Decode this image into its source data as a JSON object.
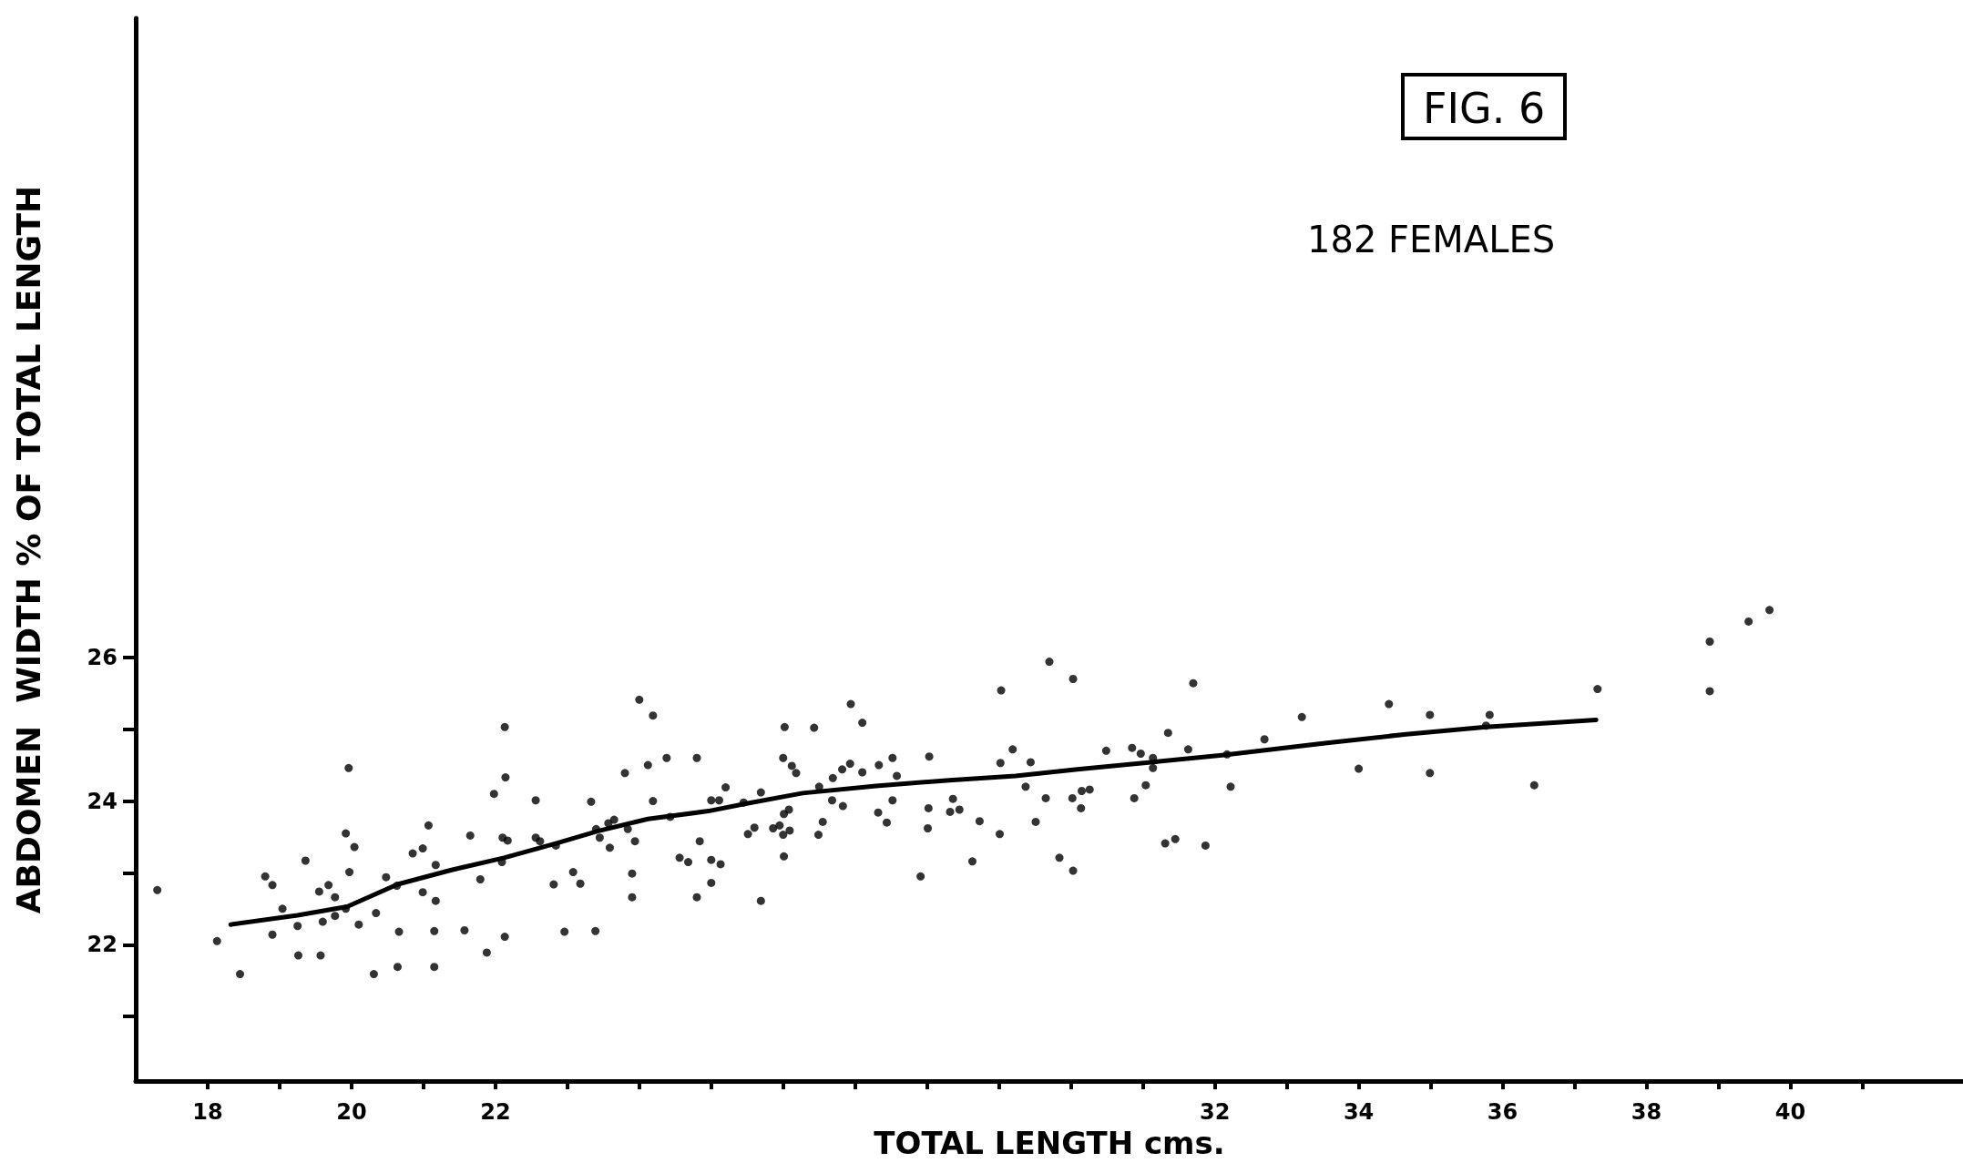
{
  "chart_data": {
    "type": "scatter",
    "title": "FIG. 6",
    "subtitle": "182 FEMALES",
    "xlabel": "TOTAL LENGTH cms.",
    "ylabel": "ABDOMEN  WIDTH % OF TOTAL LENGTH",
    "xlim": [
      17,
      42.4
    ],
    "ylim": [
      20.1,
      34.9
    ],
    "xticks": [
      18,
      {
        "value": 19,
        "label": null
      },
      20,
      {
        "value": 21,
        "label": null
      },
      22,
      {
        "value": 23,
        "label": null
      },
      {
        "value": 24,
        "label": null
      },
      {
        "value": 25,
        "label": null
      },
      {
        "value": 26,
        "label": null
      },
      {
        "value": 27,
        "label": null
      },
      {
        "value": 28,
        "label": null
      },
      {
        "value": 29,
        "label": null
      },
      {
        "value": 30,
        "label": null
      },
      {
        "value": 31,
        "label": null
      },
      32,
      {
        "value": 33,
        "label": null
      },
      34,
      {
        "value": 35,
        "label": null
      },
      36,
      {
        "value": 37,
        "label": null
      },
      38,
      {
        "value": 39,
        "label": null
      },
      40,
      {
        "value": 41,
        "label": null
      }
    ],
    "yticks": [
      {
        "value": 21,
        "label": null
      },
      22,
      {
        "value": 23,
        "label": null
      },
      24,
      {
        "value": 25,
        "label": null
      },
      26
    ],
    "marker": "circle",
    "series": [
      {
        "type": "scatter",
        "color": "#000000",
        "x": [
          17.3,
          18.13,
          18.45,
          18.8,
          18.9,
          18.9,
          19.04,
          19.25,
          19.26,
          19.36,
          19.55,
          19.68,
          19.57,
          19.6,
          19.77,
          19.77,
          19.92,
          19.96,
          19.97,
          20.04,
          19.92,
          20.1,
          20.31,
          20.34,
          20.48,
          20.63,
          20.66,
          20.64,
          20.85,
          20.99,
          20.99,
          21.07,
          21.17,
          21.17,
          21.15,
          21.15,
          21.57,
          21.65,
          21.79,
          21.88,
          21.98,
          22.09,
          22.13,
          22.14,
          22.1,
          22.17,
          22.13,
          22.56,
          22.56,
          22.62,
          22.81,
          22.84,
          22.96,
          23.08,
          23.18,
          23.33,
          23.39,
          23.4,
          23.45,
          23.57,
          23.59,
          23.65,
          23.8,
          23.84,
          23.9,
          23.9,
          23.94,
          24.0,
          24.12,
          24.19,
          24.19,
          24.38,
          24.43,
          24.56,
          24.68,
          24.8,
          24.8,
          24.84,
          25.0,
          25.13,
          25.0,
          25.0,
          25.11,
          25.2,
          25.45,
          25.51,
          25.6,
          25.69,
          25.69,
          25.86,
          25.95,
          26.0,
          26.01,
          26.01,
          26.02,
          26.0,
          26.09,
          26.08,
          26.12,
          26.18,
          26.43,
          26.49,
          26.5,
          26.55,
          26.68,
          26.69,
          26.83,
          26.82,
          26.93,
          26.94,
          27.1,
          27.1,
          27.32,
          27.33,
          27.44,
          27.52,
          27.52,
          27.58,
          27.91,
          28.01,
          28.03,
          28.02,
          28.32,
          28.36,
          28.45,
          28.63,
          28.73,
          29.01,
          29.02,
          29.03,
          29.19,
          29.37,
          29.44,
          29.51,
          29.65,
          29.7,
          29.84,
          30.02,
          30.03,
          30.03,
          30.14,
          30.15,
          30.26,
          30.49,
          30.85,
          30.88,
          30.97,
          31.04,
          31.14,
          31.14,
          31.35,
          31.31,
          31.45,
          31.63,
          31.7,
          31.87,
          32.17,
          32.22,
          32.69,
          33.21,
          34.0,
          34.42,
          34.99,
          34.99,
          35.82,
          35.77,
          36.44,
          37.32,
          38.88,
          38.88,
          39.42,
          39.71
        ],
        "values": [
          22.76,
          22.05,
          21.59,
          22.95,
          22.83,
          22.14,
          22.5,
          22.26,
          21.85,
          23.17,
          22.74,
          22.83,
          21.85,
          22.32,
          22.66,
          22.4,
          23.55,
          24.46,
          23.01,
          23.36,
          22.5,
          22.28,
          21.59,
          22.44,
          22.94,
          22.82,
          22.18,
          21.69,
          23.27,
          23.34,
          22.73,
          23.66,
          23.11,
          22.61,
          22.19,
          21.69,
          22.2,
          23.52,
          22.91,
          21.89,
          24.1,
          23.15,
          25.03,
          24.33,
          23.49,
          23.45,
          22.11,
          24.01,
          23.49,
          23.44,
          22.84,
          23.38,
          22.18,
          23.01,
          22.85,
          23.99,
          22.19,
          23.61,
          23.49,
          23.69,
          23.35,
          23.74,
          24.39,
          23.61,
          22.99,
          22.66,
          23.44,
          25.41,
          24.5,
          25.19,
          24.0,
          24.6,
          23.78,
          23.21,
          23.15,
          24.6,
          22.66,
          23.44,
          23.18,
          23.12,
          22.86,
          24.01,
          24.01,
          24.19,
          23.98,
          23.54,
          23.63,
          24.12,
          22.61,
          23.62,
          23.66,
          23.53,
          23.82,
          23.23,
          25.03,
          24.6,
          23.59,
          23.88,
          24.49,
          24.39,
          25.02,
          23.53,
          24.2,
          23.71,
          24.01,
          24.32,
          23.93,
          24.44,
          24.52,
          25.35,
          25.09,
          24.4,
          23.84,
          24.5,
          23.7,
          24.6,
          24.01,
          24.35,
          22.95,
          23.62,
          24.62,
          23.9,
          23.85,
          24.03,
          23.88,
          23.16,
          23.72,
          23.54,
          24.53,
          25.54,
          24.72,
          24.2,
          24.54,
          23.71,
          24.04,
          25.94,
          23.21,
          24.04,
          25.7,
          23.03,
          23.9,
          24.14,
          24.16,
          24.7,
          24.74,
          24.04,
          24.66,
          24.22,
          24.6,
          24.46,
          24.95,
          23.41,
          23.47,
          24.72,
          25.64,
          23.38,
          24.65,
          24.2,
          24.86,
          25.17,
          24.45,
          25.35,
          25.2,
          24.39,
          25.2,
          25.05,
          24.22,
          25.56,
          26.22,
          25.53,
          26.5,
          26.66
        ]
      },
      {
        "type": "line",
        "color": "#000000",
        "marker": "none",
        "x": [
          18.32,
          19.25,
          19.94,
          20.64,
          21.39,
          22.12,
          22.84,
          23.42,
          24.12,
          24.96,
          25.46,
          26.27,
          27.29,
          28.31,
          29.23,
          30.09,
          31.11,
          32.13,
          33.56,
          34.66,
          35.77,
          37.3
        ],
        "values": [
          22.28,
          22.41,
          22.53,
          22.84,
          23.04,
          23.21,
          23.41,
          23.58,
          23.75,
          23.86,
          23.96,
          24.11,
          24.21,
          24.29,
          24.35,
          24.44,
          24.54,
          24.64,
          24.81,
          24.93,
          25.03,
          25.13
        ]
      }
    ]
  }
}
